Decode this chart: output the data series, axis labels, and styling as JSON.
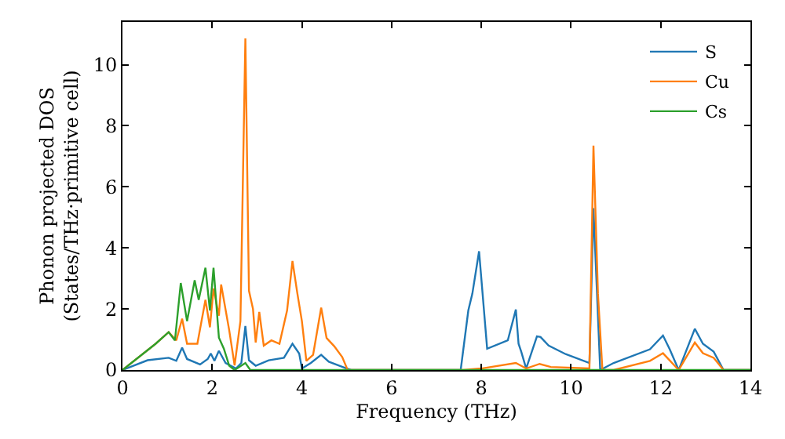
{
  "chart_data": {
    "type": "line",
    "xlabel": "Frequency (THz)",
    "ylabel": "Phonon projected DOS\n(States/THz·primitive cell)",
    "xlim": [
      0,
      14
    ],
    "xticks": [
      0,
      2,
      4,
      6,
      8,
      10,
      12,
      14
    ],
    "ylim": [
      0,
      11.4
    ],
    "yticks": [
      0,
      2,
      4,
      6,
      8,
      10
    ],
    "legend": "top right",
    "marker": "none",
    "line_style": "solid",
    "series": [
      {
        "name": "S",
        "color": "#1f77b4",
        "x": [
          0,
          0.56,
          1.03,
          1.2,
          1.33,
          1.44,
          1.73,
          1.9,
          1.97,
          2.05,
          2.15,
          2.3,
          2.53,
          2.65,
          2.74,
          2.82,
          2.97,
          3.26,
          3.6,
          3.79,
          3.94,
          4.0,
          4.2,
          4.43,
          4.6,
          5.0,
          5.1,
          7.54,
          7.71,
          7.8,
          7.95,
          8.13,
          8.59,
          8.77,
          8.83,
          8.89,
          9.0,
          9.24,
          9.32,
          9.5,
          9.88,
          10.41,
          10.5,
          10.65,
          10.95,
          11.76,
          12.05,
          12.2,
          12.4,
          12.76,
          12.94,
          13.18,
          13.4,
          14
        ],
        "values": [
          0,
          0.32,
          0.4,
          0.3,
          0.73,
          0.36,
          0.18,
          0.36,
          0.54,
          0.3,
          0.63,
          0.23,
          0.05,
          0.23,
          1.44,
          0.32,
          0.14,
          0.32,
          0.4,
          0.86,
          0.54,
          0.05,
          0.23,
          0.5,
          0.27,
          0.05,
          0,
          0,
          1.95,
          2.5,
          3.89,
          0.7,
          0.97,
          1.98,
          0.86,
          0.6,
          0.05,
          1.1,
          1.08,
          0.8,
          0.52,
          0.23,
          5.3,
          0,
          0.23,
          0.68,
          1.13,
          0.68,
          0,
          1.35,
          0.86,
          0.6,
          0,
          0
        ]
      },
      {
        "name": "Cu",
        "color": "#ff7f0e",
        "x": [
          0,
          0.74,
          1.03,
          1.2,
          1.33,
          1.44,
          1.67,
          1.85,
          1.95,
          2.03,
          2.15,
          2.2,
          2.38,
          2.5,
          2.63,
          2.74,
          2.82,
          2.91,
          2.97,
          3.05,
          3.15,
          3.32,
          3.5,
          3.67,
          3.79,
          3.9,
          4.0,
          4.1,
          4.25,
          4.43,
          4.55,
          4.72,
          4.9,
          5.02,
          7.6,
          8.0,
          8.77,
          9.0,
          9.3,
          9.55,
          10.41,
          10.5,
          10.6,
          10.7,
          10.95,
          11.76,
          12.05,
          12.4,
          12.76,
          12.94,
          13.18,
          13.4,
          14
        ],
        "values": [
          0,
          0.86,
          1.24,
          0.97,
          1.68,
          0.86,
          0.86,
          2.3,
          1.4,
          2.67,
          1.78,
          2.8,
          1.3,
          0.15,
          1.6,
          10.86,
          2.6,
          2.0,
          0.9,
          1.9,
          0.8,
          0.97,
          0.86,
          1.95,
          3.57,
          2.5,
          1.6,
          0.3,
          0.5,
          2.04,
          1.05,
          0.78,
          0.42,
          0,
          0,
          0.05,
          0.23,
          0.05,
          0.2,
          0.1,
          0.05,
          7.35,
          2.5,
          0,
          0,
          0.3,
          0.55,
          0,
          0.9,
          0.55,
          0.4,
          0,
          0
        ]
      },
      {
        "name": "Cs",
        "color": "#2ca02c",
        "x": [
          0,
          0.74,
          1.03,
          1.17,
          1.3,
          1.44,
          1.61,
          1.7,
          1.85,
          1.95,
          2.03,
          2.15,
          2.26,
          2.38,
          2.5,
          2.74,
          2.85,
          14
        ],
        "values": [
          0,
          0.86,
          1.24,
          0.97,
          2.85,
          1.6,
          2.94,
          2.3,
          3.35,
          1.95,
          3.35,
          1.06,
          0.7,
          0.14,
          0,
          0.23,
          0,
          0
        ]
      }
    ]
  }
}
